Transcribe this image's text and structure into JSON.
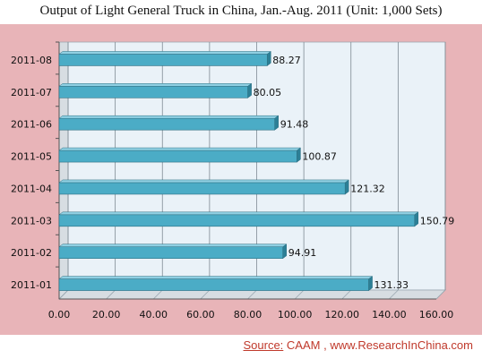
{
  "title": "Output of Light General Truck in China, Jan.-Aug. 2011  (Unit: 1,000 Sets)",
  "source": {
    "label": "Source:",
    "text": "CAAM , www.ResearchInChina.com"
  },
  "colors": {
    "bar": "#4bacc6",
    "bar_top": "#8fd0e3",
    "bar_end": "#2c7f96",
    "plot_bg": "#eaf2f8",
    "chart_bg": "#e8b4b8",
    "source": "#c0392b"
  },
  "chart_data": {
    "type": "bar",
    "orientation": "horizontal",
    "title": "Output of Light General Truck in China, Jan.-Aug. 2011  (Unit: 1,000 Sets)",
    "categories": [
      "2011-08",
      "2011-07",
      "2011-06",
      "2011-05",
      "2011-04",
      "2011-03",
      "2011-02",
      "2011-01"
    ],
    "values": [
      88.27,
      80.05,
      91.48,
      100.87,
      121.32,
      150.79,
      94.91,
      131.33
    ],
    "value_labels": [
      "88.27",
      "80.05",
      "91.48",
      "100.87",
      "121.32",
      "150.79",
      "94.91",
      "131.33"
    ],
    "xlim": [
      0,
      160
    ],
    "x_ticks": [
      "0.00",
      "20.00",
      "40.00",
      "60.00",
      "80.00",
      "100.00",
      "120.00",
      "140.00",
      "160.00"
    ],
    "x_tick_values": [
      0,
      20,
      40,
      60,
      80,
      100,
      120,
      140,
      160
    ],
    "grid": true,
    "style": "3d"
  }
}
